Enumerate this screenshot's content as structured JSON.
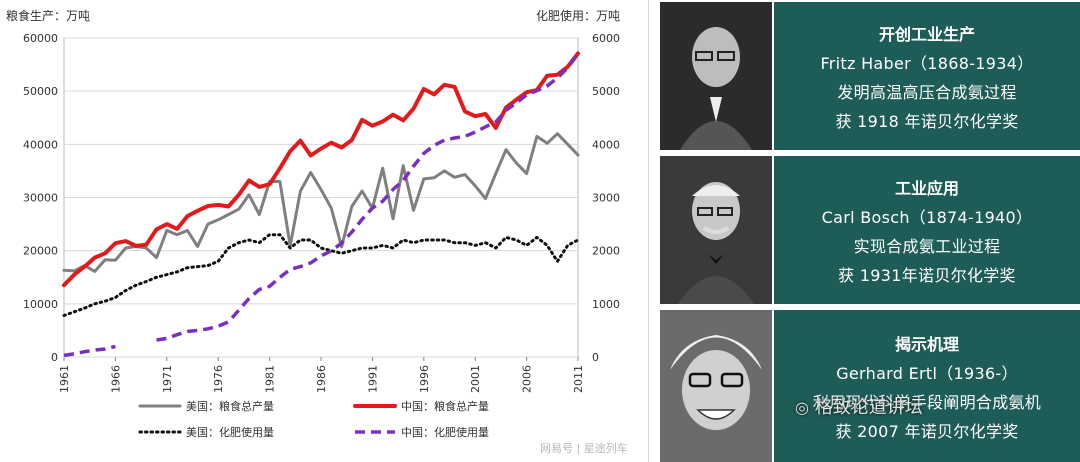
{
  "chart_data": {
    "type": "line",
    "y_left_label": "粮食生产：万吨",
    "y_right_label": "化肥使用：万吨",
    "ylim_left": [
      0,
      60000
    ],
    "ylim_right": [
      0,
      6000
    ],
    "left_ticks": [
      "0",
      "10000",
      "20000",
      "30000",
      "40000",
      "50000",
      "60000"
    ],
    "right_ticks": [
      "0",
      "1000",
      "2000",
      "3000",
      "4000",
      "5000",
      "6000"
    ],
    "x_ticks": [
      "1961",
      "1966",
      "1971",
      "1976",
      "1981",
      "1986",
      "1991",
      "1996",
      "2001",
      "2006",
      "2011"
    ],
    "xlim": [
      1961,
      2011
    ],
    "grid": "horizontal",
    "legend_position": "bottom",
    "series": [
      {
        "name": "美国：粮食总产量",
        "axis": "left",
        "color": "#7f7f7f",
        "style": "solid",
        "x": [
          1961,
          1962,
          1963,
          1964,
          1965,
          1966,
          1967,
          1968,
          1969,
          1970,
          1971,
          1972,
          1973,
          1974,
          1975,
          1976,
          1977,
          1978,
          1979,
          1980,
          1981,
          1982,
          1983,
          1984,
          1985,
          1986,
          1987,
          1988,
          1989,
          1990,
          1991,
          1992,
          1993,
          1994,
          1995,
          1996,
          1997,
          1998,
          1999,
          2000,
          2001,
          2002,
          2003,
          2004,
          2005,
          2006,
          2007,
          2008,
          2009,
          2010,
          2011
        ],
        "y": [
          16300,
          16200,
          17200,
          16100,
          18300,
          18200,
          20500,
          20800,
          20500,
          18700,
          23800,
          23000,
          23800,
          20800,
          25000,
          25800,
          26800,
          27800,
          30500,
          26800,
          33000,
          33000,
          20900,
          31200,
          34700,
          31500,
          28000,
          20700,
          28300,
          31200,
          28000,
          35500,
          26000,
          36000,
          27600,
          33500,
          33700,
          35000,
          33800,
          34300,
          32200,
          29800,
          34500,
          39000,
          36500,
          34500,
          41500,
          40200,
          42000,
          40000,
          38000
        ]
      },
      {
        "name": "中国：粮食总产量",
        "axis": "left",
        "color": "#e31a1c",
        "style": "solid",
        "x": [
          1961,
          1962,
          1963,
          1964,
          1965,
          1966,
          1967,
          1968,
          1969,
          1970,
          1971,
          1972,
          1973,
          1974,
          1975,
          1976,
          1977,
          1978,
          1979,
          1980,
          1981,
          1982,
          1983,
          1984,
          1985,
          1986,
          1987,
          1988,
          1989,
          1990,
          1991,
          1992,
          1993,
          1994,
          1995,
          1996,
          1997,
          1998,
          1999,
          2000,
          2001,
          2002,
          2003,
          2004,
          2005,
          2006,
          2007,
          2008,
          2009,
          2010,
          2011
        ],
        "y": [
          13500,
          15500,
          17000,
          18700,
          19500,
          21400,
          21800,
          20900,
          21100,
          24000,
          25000,
          24100,
          26500,
          27500,
          28400,
          28600,
          28300,
          30500,
          33200,
          32000,
          32500,
          35500,
          38700,
          40700,
          37900,
          39200,
          40300,
          39400,
          40800,
          44600,
          43500,
          44300,
          45600,
          44500,
          46700,
          50400,
          49400,
          51200,
          50800,
          46200,
          45300,
          45700,
          43100,
          46900,
          48400,
          49800,
          50200,
          52900,
          53100,
          54600,
          57100
        ]
      },
      {
        "name": "美国：化肥使用量",
        "axis": "right",
        "color": "#111111",
        "style": "dotted",
        "x": [
          1961,
          1962,
          1963,
          1964,
          1965,
          1966,
          1967,
          1968,
          1969,
          1970,
          1971,
          1972,
          1973,
          1974,
          1975,
          1976,
          1977,
          1978,
          1979,
          1980,
          1981,
          1982,
          1983,
          1984,
          1985,
          1986,
          1987,
          1988,
          1989,
          1990,
          1991,
          1992,
          1993,
          1994,
          1995,
          1996,
          1997,
          1998,
          1999,
          2000,
          2001,
          2002,
          2003,
          2004,
          2005,
          2006,
          2007,
          2008,
          2009,
          2010,
          2011
        ],
        "y": [
          780,
          850,
          920,
          1000,
          1050,
          1120,
          1250,
          1350,
          1420,
          1500,
          1550,
          1600,
          1680,
          1700,
          1720,
          1800,
          2050,
          2150,
          2200,
          2150,
          2300,
          2300,
          2050,
          2200,
          2200,
          2050,
          2000,
          1950,
          2000,
          2050,
          2050,
          2100,
          2050,
          2200,
          2150,
          2200,
          2200,
          2200,
          2150,
          2150,
          2100,
          2150,
          2050,
          2250,
          2200,
          2100,
          2250,
          2100,
          1800,
          2100,
          2200
        ]
      },
      {
        "name": "中国：化肥使用量",
        "axis": "right",
        "color": "#7b2fbe",
        "style": "dashed",
        "x": [
          1961,
          1962,
          1963,
          1964,
          1965,
          1966,
          null,
          1970,
          1971,
          1972,
          1973,
          1974,
          1975,
          1976,
          1977,
          1978,
          1979,
          1980,
          1981,
          1982,
          1983,
          1984,
          1985,
          1986,
          1987,
          1988,
          1989,
          1990,
          1991,
          1992,
          1993,
          1994,
          1995,
          1996,
          1997,
          1998,
          1999,
          2000,
          2001,
          2002,
          2003,
          2004,
          2005,
          2006,
          2007,
          2008,
          2009,
          2010,
          2011
        ],
        "y": [
          30,
          60,
          100,
          130,
          150,
          200,
          null,
          320,
          350,
          420,
          480,
          500,
          530,
          580,
          660,
          880,
          1100,
          1270,
          1330,
          1500,
          1650,
          1700,
          1770,
          1900,
          2000,
          2140,
          2350,
          2590,
          2800,
          2930,
          3150,
          3320,
          3590,
          3830,
          3980,
          4080,
          4120,
          4150,
          4230,
          4330,
          4420,
          4640,
          4780,
          4930,
          5010,
          5100,
          5250,
          5440,
          5700
        ]
      }
    ]
  },
  "panels": [
    {
      "title": "开创工业生产",
      "lines": [
        "Fritz Haber（1868-1934）",
        "发明高温高压合成氨过程",
        "获 1918 年诺贝尔化学奖"
      ]
    },
    {
      "title": "工业应用",
      "lines": [
        "Carl Bosch（1874-1940）",
        "实现合成氨工业过程",
        "获 1931年诺贝尔化学奖"
      ]
    },
    {
      "title": "揭示机理",
      "lines": [
        "Gerhard Ertl（1936-）",
        "利用现代科学手段阐明合成氨机",
        "获 2007 年诺贝尔化学奖"
      ]
    }
  ],
  "watermark": "格致论道讲坛",
  "source_mark": "网易号 | 星途列车"
}
